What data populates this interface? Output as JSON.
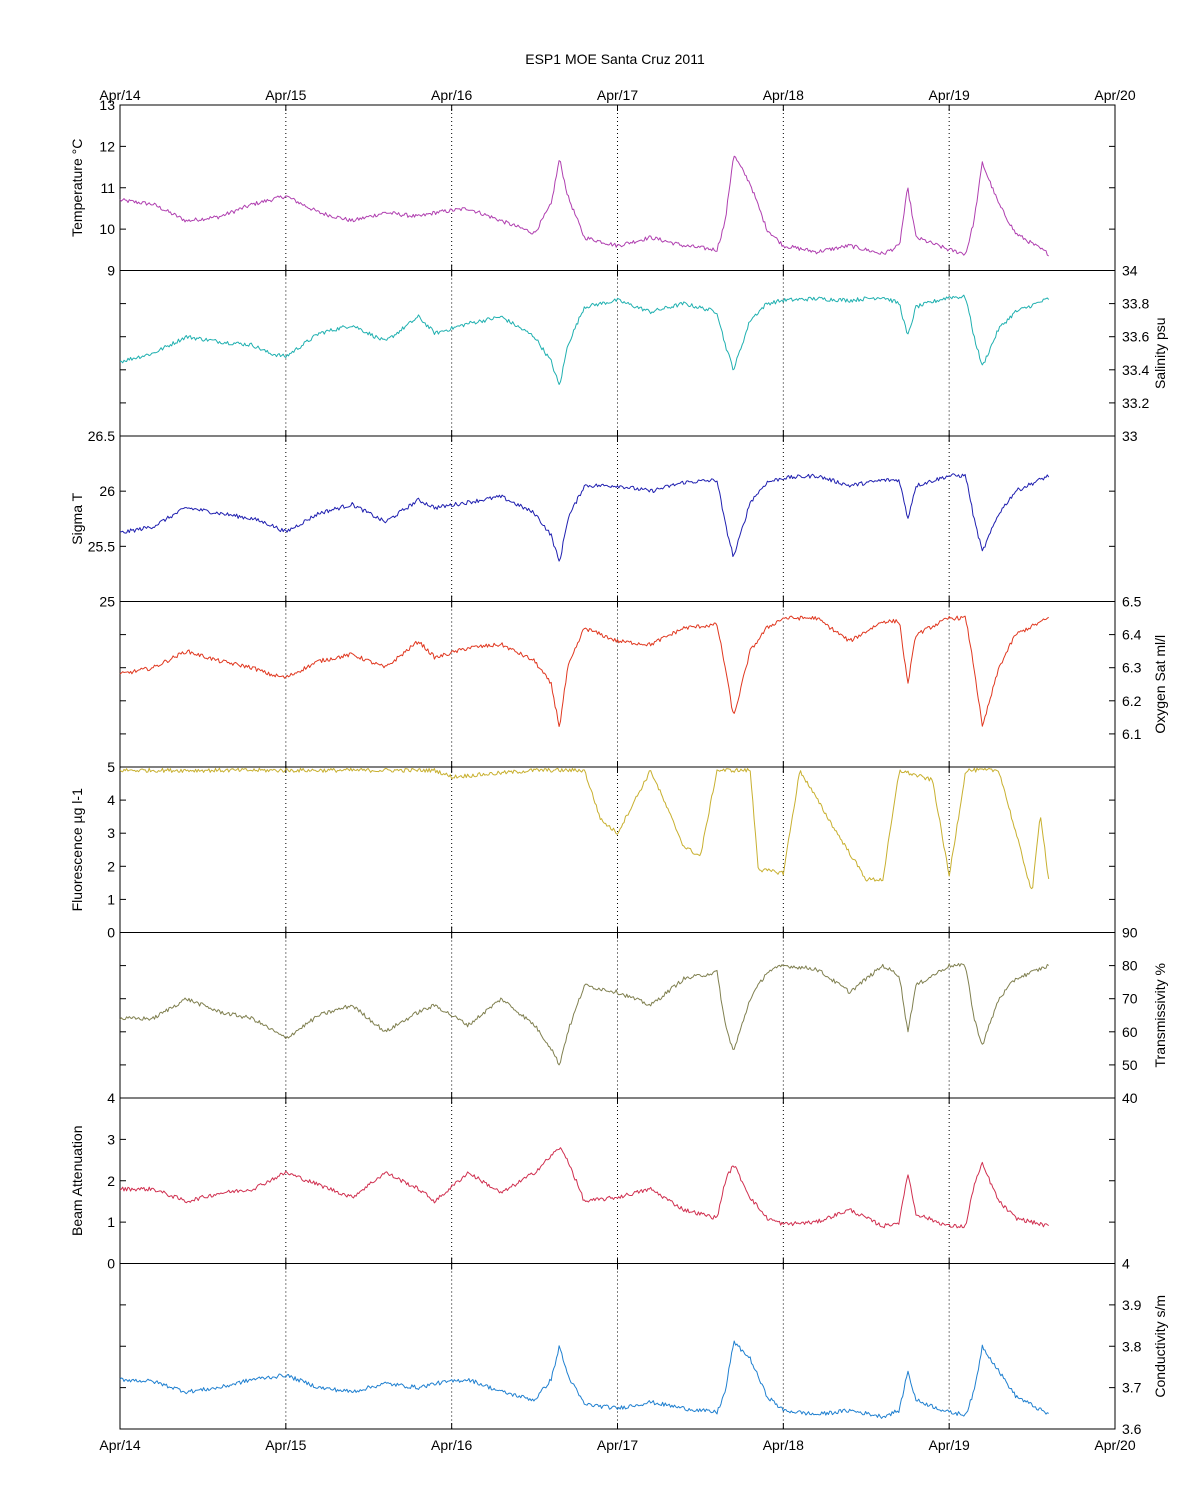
{
  "title": "ESP1 MOE Santa Cruz   2011",
  "chart_data": {
    "type": "line",
    "title": "ESP1 MOE Santa Cruz   2011",
    "xlabel": "",
    "x_ticks": [
      "Apr/14",
      "Apr/15",
      "Apr/16",
      "Apr/17",
      "Apr/18",
      "Apr/19",
      "Apr/20"
    ],
    "grid": "vertical dotted at day boundaries",
    "panels": [
      {
        "ylabel": "Temperature °C",
        "axis": "left",
        "ylim": [
          9,
          13
        ],
        "ticks": [
          "9",
          "10",
          "11",
          "12",
          "13"
        ],
        "color": "#b040b0",
        "x": [
          0,
          0.2,
          0.4,
          0.6,
          0.8,
          0.9,
          1.0,
          1.2,
          1.4,
          1.6,
          1.8,
          1.9,
          2.1,
          2.3,
          2.5,
          2.6,
          2.65,
          2.7,
          2.8,
          3.0,
          3.2,
          3.4,
          3.6,
          3.65,
          3.7,
          3.8,
          3.9,
          4.0,
          4.2,
          4.4,
          4.6,
          4.7,
          4.75,
          4.8,
          5.0,
          5.1,
          5.15,
          5.2,
          5.3,
          5.4,
          5.6
        ],
        "values": [
          10.7,
          10.6,
          10.2,
          10.3,
          10.6,
          10.7,
          10.8,
          10.4,
          10.2,
          10.4,
          10.3,
          10.4,
          10.5,
          10.2,
          9.9,
          10.6,
          11.7,
          10.8,
          9.8,
          9.6,
          9.8,
          9.6,
          9.5,
          10.2,
          11.8,
          11.1,
          10.0,
          9.6,
          9.45,
          9.6,
          9.4,
          9.6,
          11.0,
          9.8,
          9.5,
          9.4,
          10.2,
          11.6,
          10.6,
          9.9,
          9.4
        ]
      },
      {
        "ylabel": "Salinity psu",
        "axis": "right",
        "ylim": [
          33,
          34
        ],
        "ticks": [
          "33",
          "33.2",
          "33.4",
          "33.6",
          "33.8",
          "34"
        ],
        "color": "#20b0b0",
        "x": [
          0,
          0.2,
          0.4,
          0.6,
          0.8,
          0.9,
          1.0,
          1.2,
          1.4,
          1.6,
          1.8,
          1.9,
          2.1,
          2.3,
          2.5,
          2.6,
          2.65,
          2.7,
          2.8,
          3.0,
          3.2,
          3.4,
          3.6,
          3.65,
          3.7,
          3.8,
          3.9,
          4.0,
          4.2,
          4.4,
          4.6,
          4.7,
          4.75,
          4.8,
          5.0,
          5.1,
          5.15,
          5.2,
          5.3,
          5.4,
          5.6
        ],
        "values": [
          33.45,
          33.5,
          33.6,
          33.57,
          33.55,
          33.5,
          33.48,
          33.62,
          33.67,
          33.57,
          33.72,
          33.62,
          33.68,
          33.72,
          33.6,
          33.45,
          33.3,
          33.55,
          33.78,
          33.82,
          33.75,
          33.8,
          33.75,
          33.55,
          33.4,
          33.7,
          33.8,
          33.82,
          33.83,
          33.82,
          33.84,
          33.8,
          33.6,
          33.78,
          33.84,
          33.84,
          33.6,
          33.42,
          33.65,
          33.75,
          33.83
        ]
      },
      {
        "ylabel": "Sigma T",
        "axis": "left",
        "ylim": [
          25,
          26.5
        ],
        "ticks": [
          "25",
          "25.5",
          "26",
          "26.5"
        ],
        "color": "#2020b0",
        "x": [
          0,
          0.2,
          0.4,
          0.6,
          0.8,
          0.9,
          1.0,
          1.2,
          1.4,
          1.6,
          1.8,
          1.9,
          2.1,
          2.3,
          2.5,
          2.6,
          2.65,
          2.7,
          2.8,
          3.0,
          3.2,
          3.4,
          3.6,
          3.65,
          3.7,
          3.8,
          3.9,
          4.0,
          4.2,
          4.4,
          4.6,
          4.7,
          4.75,
          4.8,
          5.0,
          5.1,
          5.15,
          5.2,
          5.3,
          5.4,
          5.6
        ],
        "values": [
          25.62,
          25.68,
          25.85,
          25.8,
          25.75,
          25.7,
          25.63,
          25.8,
          25.88,
          25.72,
          25.92,
          25.85,
          25.9,
          25.95,
          25.8,
          25.6,
          25.35,
          25.75,
          26.05,
          26.05,
          26.0,
          26.08,
          26.1,
          25.7,
          25.4,
          25.9,
          26.08,
          26.12,
          26.14,
          26.05,
          26.1,
          26.1,
          25.75,
          26.05,
          26.14,
          26.14,
          25.75,
          25.45,
          25.8,
          26.0,
          26.14
        ]
      },
      {
        "ylabel": "Oxygen Sat ml/l",
        "axis": "right",
        "ylim": [
          6,
          6.5
        ],
        "ticks": [
          "6.1",
          "6.2",
          "6.3",
          "6.4",
          "6.5"
        ],
        "color": "#e03820",
        "x": [
          0,
          0.2,
          0.4,
          0.6,
          0.8,
          0.9,
          1.0,
          1.2,
          1.4,
          1.6,
          1.8,
          1.9,
          2.1,
          2.3,
          2.5,
          2.6,
          2.65,
          2.7,
          2.8,
          3.0,
          3.2,
          3.4,
          3.6,
          3.65,
          3.7,
          3.8,
          3.9,
          4.0,
          4.2,
          4.4,
          4.6,
          4.7,
          4.75,
          4.8,
          5.0,
          5.1,
          5.15,
          5.2,
          5.3,
          5.4,
          5.6
        ],
        "values": [
          6.28,
          6.3,
          6.35,
          6.32,
          6.3,
          6.28,
          6.27,
          6.32,
          6.34,
          6.3,
          6.38,
          6.33,
          6.36,
          6.37,
          6.32,
          6.25,
          6.12,
          6.3,
          6.42,
          6.38,
          6.37,
          6.42,
          6.43,
          6.3,
          6.15,
          6.35,
          6.42,
          6.45,
          6.45,
          6.38,
          6.44,
          6.44,
          6.25,
          6.4,
          6.45,
          6.45,
          6.3,
          6.12,
          6.3,
          6.4,
          6.45
        ]
      },
      {
        "ylabel": "Fluorescence µg l-1",
        "axis": "left",
        "ylim": [
          0,
          5
        ],
        "ticks": [
          "0",
          "1",
          "2",
          "3",
          "4",
          "5"
        ],
        "color": "#c8b030",
        "x": [
          0,
          0.5,
          1.0,
          1.5,
          1.9,
          2.0,
          2.5,
          2.8,
          2.9,
          3.0,
          3.2,
          3.4,
          3.5,
          3.6,
          3.8,
          3.85,
          4.0,
          4.1,
          4.3,
          4.5,
          4.6,
          4.7,
          4.9,
          5.0,
          5.1,
          5.3,
          5.5,
          5.55,
          5.6
        ],
        "values": [
          4.9,
          4.9,
          4.9,
          4.9,
          4.9,
          4.7,
          4.9,
          4.9,
          3.4,
          3.0,
          4.9,
          2.6,
          2.3,
          4.9,
          4.9,
          1.9,
          1.8,
          4.9,
          3.2,
          1.6,
          1.6,
          4.9,
          4.6,
          1.7,
          4.9,
          4.9,
          1.2,
          3.6,
          1.6
        ]
      },
      {
        "ylabel": "Transmissivity %",
        "axis": "right",
        "ylim": [
          40,
          90
        ],
        "ticks": [
          "40",
          "50",
          "60",
          "70",
          "80",
          "90"
        ],
        "color": "#808050",
        "x": [
          0,
          0.2,
          0.4,
          0.6,
          0.8,
          0.9,
          1.0,
          1.2,
          1.4,
          1.6,
          1.8,
          1.9,
          2.1,
          2.3,
          2.5,
          2.6,
          2.65,
          2.7,
          2.8,
          3.0,
          3.2,
          3.4,
          3.6,
          3.65,
          3.7,
          3.8,
          3.9,
          4.0,
          4.2,
          4.4,
          4.6,
          4.7,
          4.75,
          4.8,
          5.0,
          5.1,
          5.15,
          5.2,
          5.3,
          5.4,
          5.6
        ],
        "values": [
          64,
          64,
          70,
          66,
          64,
          61,
          58,
          65,
          68,
          60,
          66,
          68,
          62,
          70,
          62,
          55,
          50,
          60,
          74,
          72,
          68,
          76,
          78,
          62,
          54,
          70,
          78,
          80,
          79,
          72,
          80,
          77,
          60,
          74,
          80,
          80,
          64,
          56,
          70,
          76,
          80
        ]
      },
      {
        "ylabel": "Beam Attenuation",
        "axis": "left",
        "ylim": [
          0,
          4
        ],
        "ticks": [
          "0",
          "1",
          "2",
          "3",
          "4"
        ],
        "color": "#d03050",
        "x": [
          0,
          0.2,
          0.4,
          0.6,
          0.8,
          0.9,
          1.0,
          1.2,
          1.4,
          1.6,
          1.8,
          1.9,
          2.1,
          2.3,
          2.5,
          2.6,
          2.65,
          2.7,
          2.8,
          3.0,
          3.2,
          3.4,
          3.6,
          3.65,
          3.7,
          3.8,
          3.9,
          4.0,
          4.2,
          4.4,
          4.6,
          4.7,
          4.75,
          4.8,
          5.0,
          5.1,
          5.15,
          5.2,
          5.3,
          5.4,
          5.6
        ],
        "values": [
          1.8,
          1.8,
          1.5,
          1.7,
          1.8,
          2.0,
          2.2,
          1.9,
          1.6,
          2.2,
          1.8,
          1.5,
          2.2,
          1.7,
          2.2,
          2.6,
          2.8,
          2.5,
          1.5,
          1.6,
          1.8,
          1.3,
          1.1,
          2.0,
          2.4,
          1.6,
          1.1,
          0.95,
          1.0,
          1.3,
          0.9,
          1.0,
          2.2,
          1.2,
          0.9,
          0.9,
          1.9,
          2.4,
          1.5,
          1.1,
          0.9
        ]
      },
      {
        "ylabel": "Conductivity s/m",
        "axis": "right",
        "ylim": [
          3.6,
          4
        ],
        "ticks": [
          "3.6",
          "3.7",
          "3.8",
          "3.9",
          "4"
        ],
        "color": "#2080d0",
        "x": [
          0,
          0.2,
          0.4,
          0.6,
          0.8,
          0.9,
          1.0,
          1.2,
          1.4,
          1.6,
          1.8,
          1.9,
          2.1,
          2.3,
          2.5,
          2.6,
          2.65,
          2.7,
          2.8,
          3.0,
          3.2,
          3.4,
          3.6,
          3.65,
          3.7,
          3.8,
          3.9,
          4.0,
          4.2,
          4.4,
          4.6,
          4.7,
          4.75,
          4.8,
          5.0,
          5.1,
          5.15,
          5.2,
          5.3,
          5.4,
          5.6
        ],
        "values": [
          3.72,
          3.715,
          3.69,
          3.7,
          3.72,
          3.725,
          3.73,
          3.7,
          3.69,
          3.71,
          3.7,
          3.71,
          3.72,
          3.69,
          3.67,
          3.72,
          3.8,
          3.73,
          3.66,
          3.65,
          3.665,
          3.65,
          3.64,
          3.69,
          3.81,
          3.77,
          3.68,
          3.645,
          3.635,
          3.645,
          3.63,
          3.645,
          3.74,
          3.67,
          3.64,
          3.635,
          3.69,
          3.8,
          3.74,
          3.68,
          3.635
        ]
      }
    ]
  }
}
